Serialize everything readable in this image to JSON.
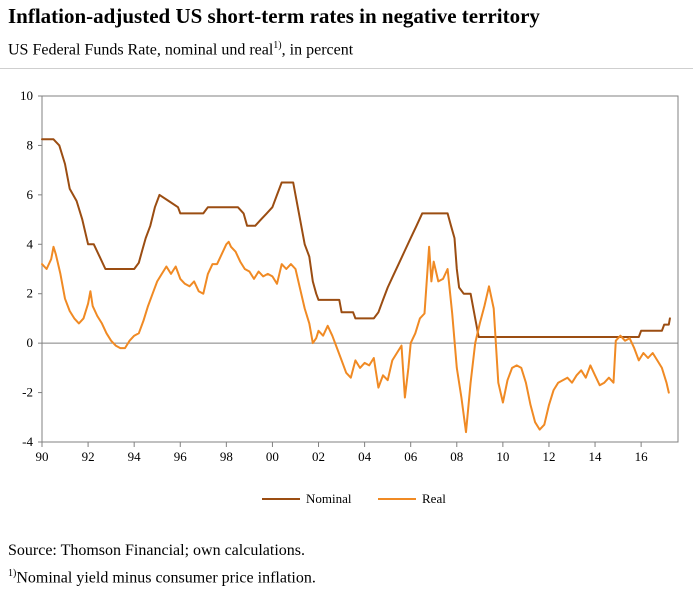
{
  "title": "Inflation-adjusted US short-term rates in negative territory",
  "subtitle": {
    "text": "US Federal Funds Rate, nominal und real",
    "note_ref": "1)",
    "suffix": ", in percent"
  },
  "source": "Source: Thomson Financial; own calculations.",
  "footnote": {
    "ref": "1)",
    "text": "Nominal yield minus consumer price inflation."
  },
  "colors": {
    "nominal": "#9b4d12",
    "real": "#f08a24",
    "axis": "#808080"
  },
  "chart_data": {
    "type": "line",
    "title": "Inflation-adjusted US short-term rates in negative territory",
    "xlabel": "",
    "ylabel": "",
    "xlim": [
      1990,
      2017.6
    ],
    "ylim": [
      -4,
      10
    ],
    "yticks": [
      10,
      8,
      6,
      4,
      2,
      0,
      -2,
      -4
    ],
    "xticks": [
      {
        "value": 1990,
        "label": "90"
      },
      {
        "value": 1992,
        "label": "92"
      },
      {
        "value": 1994,
        "label": "94"
      },
      {
        "value": 1996,
        "label": "96"
      },
      {
        "value": 1998,
        "label": "98"
      },
      {
        "value": 2000,
        "label": "00"
      },
      {
        "value": 2002,
        "label": "02"
      },
      {
        "value": 2004,
        "label": "04"
      },
      {
        "value": 2006,
        "label": "06"
      },
      {
        "value": 2008,
        "label": "08"
      },
      {
        "value": 2010,
        "label": "10"
      },
      {
        "value": 2012,
        "label": "12"
      },
      {
        "value": 2014,
        "label": "14"
      },
      {
        "value": 2016,
        "label": "16"
      }
    ],
    "legend_position": "bottom-center",
    "series": [
      {
        "name": "Nominal",
        "color": "#9b4d12",
        "points": [
          [
            1990.0,
            8.25
          ],
          [
            1990.5,
            8.25
          ],
          [
            1990.75,
            8.0
          ],
          [
            1991.0,
            7.25
          ],
          [
            1991.2,
            6.25
          ],
          [
            1991.5,
            5.75
          ],
          [
            1991.75,
            5.0
          ],
          [
            1992.0,
            4.0
          ],
          [
            1992.25,
            4.0
          ],
          [
            1992.5,
            3.5
          ],
          [
            1992.75,
            3.0
          ],
          [
            1993.0,
            3.0
          ],
          [
            1993.5,
            3.0
          ],
          [
            1994.0,
            3.0
          ],
          [
            1994.2,
            3.25
          ],
          [
            1994.35,
            3.75
          ],
          [
            1994.5,
            4.25
          ],
          [
            1994.7,
            4.75
          ],
          [
            1994.9,
            5.5
          ],
          [
            1995.1,
            6.0
          ],
          [
            1995.5,
            5.75
          ],
          [
            1995.9,
            5.5
          ],
          [
            1996.0,
            5.25
          ],
          [
            1996.5,
            5.25
          ],
          [
            1997.0,
            5.25
          ],
          [
            1997.2,
            5.5
          ],
          [
            1997.5,
            5.5
          ],
          [
            1998.0,
            5.5
          ],
          [
            1998.5,
            5.5
          ],
          [
            1998.75,
            5.25
          ],
          [
            1998.9,
            4.75
          ],
          [
            1999.25,
            4.75
          ],
          [
            1999.5,
            5.0
          ],
          [
            1999.75,
            5.25
          ],
          [
            2000.0,
            5.5
          ],
          [
            2000.2,
            6.0
          ],
          [
            2000.4,
            6.5
          ],
          [
            2000.9,
            6.5
          ],
          [
            2001.0,
            6.0
          ],
          [
            2001.2,
            5.0
          ],
          [
            2001.4,
            4.0
          ],
          [
            2001.6,
            3.5
          ],
          [
            2001.75,
            2.5
          ],
          [
            2001.9,
            2.0
          ],
          [
            2002.0,
            1.75
          ],
          [
            2002.5,
            1.75
          ],
          [
            2002.9,
            1.75
          ],
          [
            2003.0,
            1.25
          ],
          [
            2003.5,
            1.25
          ],
          [
            2003.6,
            1.0
          ],
          [
            2004.0,
            1.0
          ],
          [
            2004.4,
            1.0
          ],
          [
            2004.6,
            1.25
          ],
          [
            2004.8,
            1.75
          ],
          [
            2005.0,
            2.25
          ],
          [
            2005.25,
            2.75
          ],
          [
            2005.5,
            3.25
          ],
          [
            2005.75,
            3.75
          ],
          [
            2006.0,
            4.25
          ],
          [
            2006.25,
            4.75
          ],
          [
            2006.5,
            5.25
          ],
          [
            2007.0,
            5.25
          ],
          [
            2007.6,
            5.25
          ],
          [
            2007.75,
            4.75
          ],
          [
            2007.9,
            4.25
          ],
          [
            2008.0,
            3.0
          ],
          [
            2008.1,
            2.25
          ],
          [
            2008.3,
            2.0
          ],
          [
            2008.6,
            2.0
          ],
          [
            2008.8,
            1.0
          ],
          [
            2008.95,
            0.25
          ],
          [
            2009.5,
            0.25
          ],
          [
            2010.0,
            0.25
          ],
          [
            2011.0,
            0.25
          ],
          [
            2012.0,
            0.25
          ],
          [
            2013.0,
            0.25
          ],
          [
            2014.0,
            0.25
          ],
          [
            2015.0,
            0.25
          ],
          [
            2015.9,
            0.25
          ],
          [
            2016.0,
            0.5
          ],
          [
            2016.5,
            0.5
          ],
          [
            2016.9,
            0.5
          ],
          [
            2017.0,
            0.75
          ],
          [
            2017.2,
            0.75
          ],
          [
            2017.25,
            1.0
          ]
        ]
      },
      {
        "name": "Real",
        "color": "#f08a24",
        "points": [
          [
            1990.0,
            3.2
          ],
          [
            1990.2,
            3.0
          ],
          [
            1990.4,
            3.4
          ],
          [
            1990.5,
            3.9
          ],
          [
            1990.6,
            3.6
          ],
          [
            1990.8,
            2.8
          ],
          [
            1991.0,
            1.8
          ],
          [
            1991.2,
            1.3
          ],
          [
            1991.4,
            1.0
          ],
          [
            1991.6,
            0.8
          ],
          [
            1991.8,
            1.0
          ],
          [
            1992.0,
            1.6
          ],
          [
            1992.1,
            2.1
          ],
          [
            1992.2,
            1.5
          ],
          [
            1992.4,
            1.1
          ],
          [
            1992.6,
            0.8
          ],
          [
            1992.8,
            0.4
          ],
          [
            1993.0,
            0.1
          ],
          [
            1993.2,
            -0.1
          ],
          [
            1993.4,
            -0.2
          ],
          [
            1993.6,
            -0.2
          ],
          [
            1993.8,
            0.1
          ],
          [
            1994.0,
            0.3
          ],
          [
            1994.2,
            0.4
          ],
          [
            1994.4,
            0.9
          ],
          [
            1994.6,
            1.5
          ],
          [
            1994.8,
            2.0
          ],
          [
            1995.0,
            2.5
          ],
          [
            1995.2,
            2.8
          ],
          [
            1995.4,
            3.1
          ],
          [
            1995.6,
            2.8
          ],
          [
            1995.8,
            3.1
          ],
          [
            1996.0,
            2.6
          ],
          [
            1996.2,
            2.4
          ],
          [
            1996.4,
            2.3
          ],
          [
            1996.6,
            2.5
          ],
          [
            1996.8,
            2.1
          ],
          [
            1997.0,
            2.0
          ],
          [
            1997.2,
            2.8
          ],
          [
            1997.4,
            3.2
          ],
          [
            1997.6,
            3.2
          ],
          [
            1997.8,
            3.6
          ],
          [
            1998.0,
            4.0
          ],
          [
            1998.1,
            4.1
          ],
          [
            1998.2,
            3.9
          ],
          [
            1998.4,
            3.7
          ],
          [
            1998.6,
            3.3
          ],
          [
            1998.8,
            3.0
          ],
          [
            1999.0,
            2.9
          ],
          [
            1999.2,
            2.6
          ],
          [
            1999.4,
            2.9
          ],
          [
            1999.6,
            2.7
          ],
          [
            1999.8,
            2.8
          ],
          [
            2000.0,
            2.7
          ],
          [
            2000.2,
            2.4
          ],
          [
            2000.4,
            3.2
          ],
          [
            2000.6,
            3.0
          ],
          [
            2000.8,
            3.2
          ],
          [
            2001.0,
            3.0
          ],
          [
            2001.2,
            2.2
          ],
          [
            2001.4,
            1.4
          ],
          [
            2001.6,
            0.8
          ],
          [
            2001.75,
            0.0
          ],
          [
            2001.9,
            0.2
          ],
          [
            2002.0,
            0.5
          ],
          [
            2002.2,
            0.3
          ],
          [
            2002.4,
            0.7
          ],
          [
            2002.6,
            0.3
          ],
          [
            2002.8,
            -0.2
          ],
          [
            2003.0,
            -0.7
          ],
          [
            2003.2,
            -1.2
          ],
          [
            2003.4,
            -1.4
          ],
          [
            2003.6,
            -0.7
          ],
          [
            2003.8,
            -1.0
          ],
          [
            2004.0,
            -0.8
          ],
          [
            2004.2,
            -0.9
          ],
          [
            2004.4,
            -0.6
          ],
          [
            2004.6,
            -1.8
          ],
          [
            2004.8,
            -1.3
          ],
          [
            2005.0,
            -1.5
          ],
          [
            2005.2,
            -0.7
          ],
          [
            2005.4,
            -0.4
          ],
          [
            2005.6,
            -0.1
          ],
          [
            2005.75,
            -2.2
          ],
          [
            2005.9,
            -1.0
          ],
          [
            2006.0,
            0.0
          ],
          [
            2006.2,
            0.4
          ],
          [
            2006.4,
            1.0
          ],
          [
            2006.6,
            1.2
          ],
          [
            2006.8,
            3.9
          ],
          [
            2006.9,
            2.5
          ],
          [
            2007.0,
            3.3
          ],
          [
            2007.2,
            2.5
          ],
          [
            2007.4,
            2.6
          ],
          [
            2007.6,
            3.0
          ],
          [
            2007.8,
            1.2
          ],
          [
            2008.0,
            -1.0
          ],
          [
            2008.2,
            -2.2
          ],
          [
            2008.4,
            -3.6
          ],
          [
            2008.6,
            -1.6
          ],
          [
            2008.8,
            0.0
          ],
          [
            2009.0,
            0.8
          ],
          [
            2009.2,
            1.5
          ],
          [
            2009.4,
            2.3
          ],
          [
            2009.6,
            1.4
          ],
          [
            2009.8,
            -1.6
          ],
          [
            2010.0,
            -2.4
          ],
          [
            2010.2,
            -1.5
          ],
          [
            2010.4,
            -1.0
          ],
          [
            2010.6,
            -0.9
          ],
          [
            2010.8,
            -1.0
          ],
          [
            2011.0,
            -1.6
          ],
          [
            2011.2,
            -2.5
          ],
          [
            2011.4,
            -3.2
          ],
          [
            2011.6,
            -3.5
          ],
          [
            2011.8,
            -3.3
          ],
          [
            2012.0,
            -2.5
          ],
          [
            2012.2,
            -1.9
          ],
          [
            2012.4,
            -1.6
          ],
          [
            2012.6,
            -1.5
          ],
          [
            2012.8,
            -1.4
          ],
          [
            2013.0,
            -1.6
          ],
          [
            2013.2,
            -1.3
          ],
          [
            2013.4,
            -1.1
          ],
          [
            2013.6,
            -1.4
          ],
          [
            2013.8,
            -0.9
          ],
          [
            2014.0,
            -1.3
          ],
          [
            2014.2,
            -1.7
          ],
          [
            2014.4,
            -1.6
          ],
          [
            2014.6,
            -1.4
          ],
          [
            2014.8,
            -1.6
          ],
          [
            2014.9,
            0.1
          ],
          [
            2015.1,
            0.3
          ],
          [
            2015.3,
            0.1
          ],
          [
            2015.5,
            0.2
          ],
          [
            2015.7,
            -0.2
          ],
          [
            2015.9,
            -0.7
          ],
          [
            2016.1,
            -0.4
          ],
          [
            2016.3,
            -0.6
          ],
          [
            2016.5,
            -0.4
          ],
          [
            2016.7,
            -0.7
          ],
          [
            2016.9,
            -1.0
          ],
          [
            2017.1,
            -1.6
          ],
          [
            2017.2,
            -2.0
          ]
        ]
      }
    ]
  }
}
